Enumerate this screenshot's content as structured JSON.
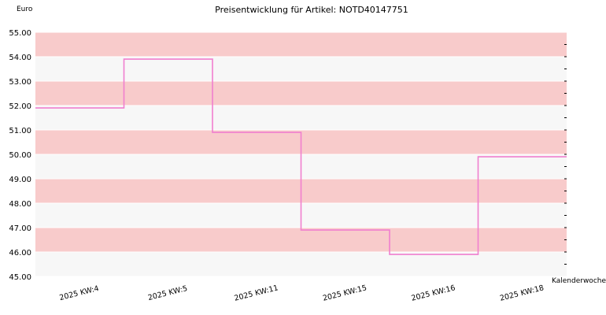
{
  "chart_data": {
    "type": "line",
    "step": true,
    "title": "Preisentwicklung für Artikel: NOTD40147751",
    "ylabel": "Euro",
    "xlabel": "Kalenderwoche",
    "categories": [
      "2025 KW:4",
      "2025 KW:5",
      "2025 KW:11",
      "2025 KW:15",
      "2025 KW:16",
      "2025 KW:18"
    ],
    "series": [
      {
        "values": [
          51.9,
          53.9,
          50.9,
          46.9,
          45.9,
          49.9
        ],
        "color": "#f07fcf"
      }
    ],
    "ylim": [
      45,
      55
    ],
    "yticks": [
      "45.00",
      "46.00",
      "47.00",
      "48.00",
      "49.00",
      "50.00",
      "51.00",
      "52.00",
      "53.00",
      "54.00",
      "55.00"
    ],
    "band_colors": [
      "#f7f7f7",
      "#f8cbcb"
    ],
    "grid_color": "#ffffff",
    "axis_color": "#000000"
  }
}
